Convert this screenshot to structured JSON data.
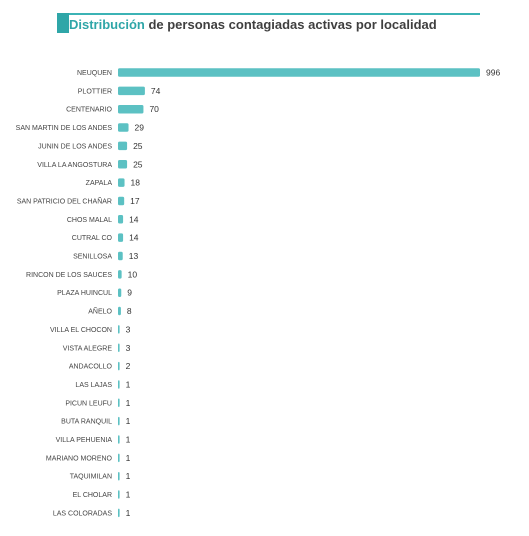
{
  "chart_data": {
    "type": "bar",
    "orientation": "horizontal",
    "title_highlight": "Distribución",
    "title_rest": " de personas contagiadas activas por localidad",
    "categories": [
      "NEUQUEN",
      "PLOTTIER",
      "CENTENARIO",
      "SAN MARTIN DE LOS ANDES",
      "JUNIN DE LOS ANDES",
      "VILLA LA ANGOSTURA",
      "ZAPALA",
      "SAN PATRICIO DEL CHAÑAR",
      "CHOS MALAL",
      "CUTRAL CO",
      "SENILLOSA",
      "RINCON DE LOS SAUCES",
      "PLAZA HUINCUL",
      "AÑELO",
      "VILLA EL CHOCON",
      "VISTA ALEGRE",
      "ANDACOLLO",
      "LAS LAJAS",
      "PICUN LEUFU",
      "BUTA RANQUIL",
      "VILLA PEHUENIA",
      "MARIANO MORENO",
      "TAQUIMILAN",
      "EL CHOLAR",
      "LAS COLORADAS"
    ],
    "values": [
      996,
      74,
      70,
      29,
      25,
      25,
      18,
      17,
      14,
      14,
      13,
      10,
      9,
      8,
      3,
      3,
      2,
      1,
      1,
      1,
      1,
      1,
      1,
      1,
      1
    ],
    "xlim": [
      0,
      996
    ],
    "grid": false,
    "legend": false,
    "bar_color": "#5cc1c3",
    "title_accent_color": "#2fa6a8"
  }
}
